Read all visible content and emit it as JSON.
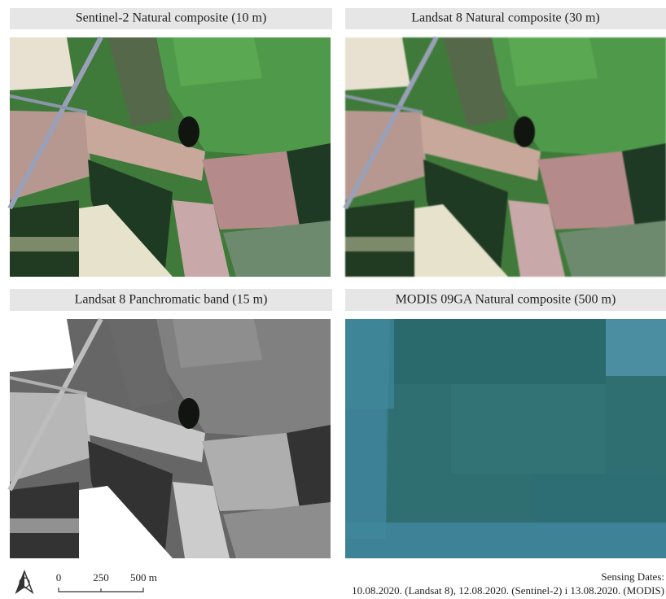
{
  "panels": [
    {
      "title": "Sentinel-2 Natural composite (10 m)"
    },
    {
      "title": "Landsat 8 Natural composite (30 m)"
    },
    {
      "title": "Landsat 8 Panchromatic band (15 m)"
    },
    {
      "title": "MODIS 09GA Natural composite (500 m)"
    }
  ],
  "scale_bar": {
    "labels": [
      "0",
      "250",
      "500 m"
    ]
  },
  "sensing_dates": {
    "label": "Sensing Dates:",
    "text": "10.08.2020. (Landsat 8), 12.08.2020. (Sentinel-2) i 13.08.2020. (MODIS)"
  }
}
